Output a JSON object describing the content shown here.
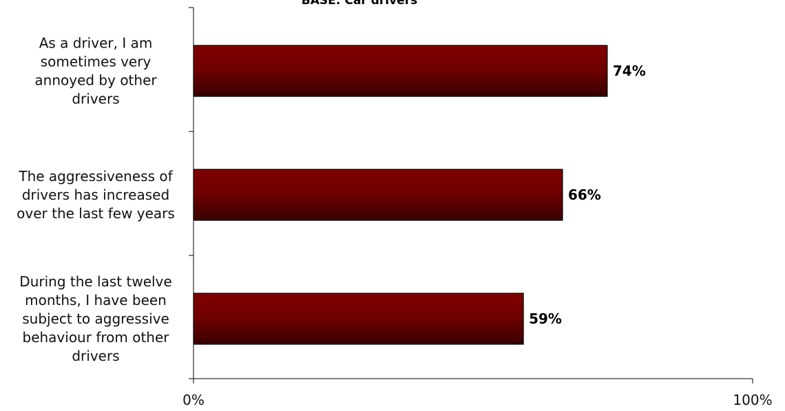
{
  "chart_data": {
    "type": "bar",
    "orientation": "horizontal",
    "title": "BASE: Car drivers",
    "categories": [
      [
        "As a driver, I am",
        "sometimes very",
        "annoyed by other",
        "drivers"
      ],
      [
        "The aggressiveness of",
        "drivers has increased",
        "over the last few years"
      ],
      [
        "During the last twelve",
        "months, I have been",
        "subject to aggressive",
        "behaviour from other",
        "drivers"
      ]
    ],
    "values": [
      74,
      66,
      59
    ],
    "value_labels": [
      "74%",
      "66%",
      "59%"
    ],
    "xlim": [
      0,
      100
    ],
    "x_tick_labels": [
      "0%",
      "100%"
    ],
    "grid": false,
    "legend": "none",
    "bar_color_top": "#800000",
    "bar_color_bottom": "#3a0000"
  }
}
